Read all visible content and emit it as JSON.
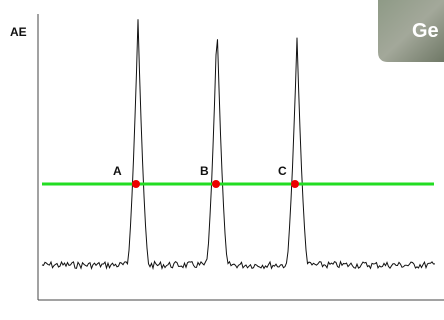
{
  "axis_label": "AE",
  "points": [
    {
      "label": "A"
    },
    {
      "label": "B"
    },
    {
      "label": "C"
    }
  ],
  "image_caption": "Ge"
}
